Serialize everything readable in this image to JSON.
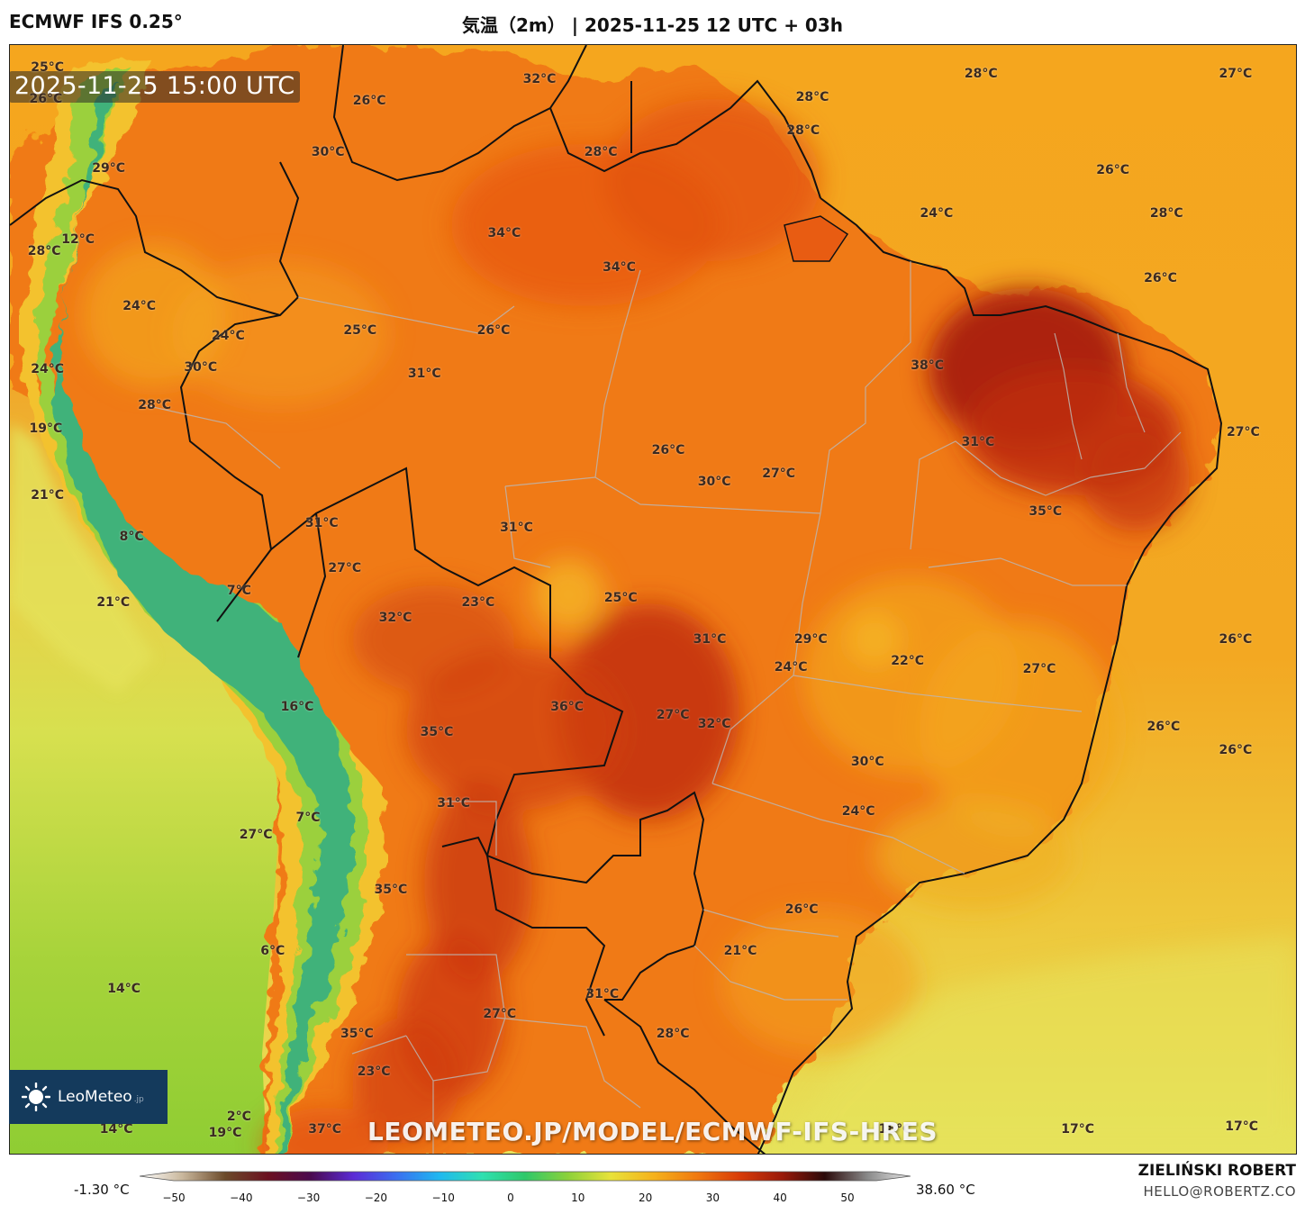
{
  "header": {
    "model": "ECMWF IFS 0.25°",
    "title": "気温（2m） | 2025-11-25 12 UTC + 03h"
  },
  "map": {
    "timestamp": "2025-11-25 15:00 UTC",
    "labels": [
      {
        "text": "25°C",
        "lon": -81.5,
        "lat": 13.6
      },
      {
        "text": "26°C",
        "lon": -81.6,
        "lat": 11.7
      },
      {
        "text": "29°C",
        "lon": -77.5,
        "lat": 7.5
      },
      {
        "text": "12°C",
        "lon": -79.5,
        "lat": 3.2
      },
      {
        "text": "28°C",
        "lon": -81.7,
        "lat": 2.5
      },
      {
        "text": "24°C",
        "lon": -75.5,
        "lat": -0.8
      },
      {
        "text": "24°C",
        "lon": -81.5,
        "lat": -4.6
      },
      {
        "text": "19°C",
        "lon": -81.6,
        "lat": -8.2
      },
      {
        "text": "21°C",
        "lon": -81.5,
        "lat": -12.2
      },
      {
        "text": "28°C",
        "lon": -74.5,
        "lat": -6.8
      },
      {
        "text": "8°C",
        "lon": -76.0,
        "lat": -14.7
      },
      {
        "text": "21°C",
        "lon": -77.2,
        "lat": -18.7
      },
      {
        "text": "7°C",
        "lon": -69.0,
        "lat": -18.0
      },
      {
        "text": "16°C",
        "lon": -65.2,
        "lat": -25.0
      },
      {
        "text": "27°C",
        "lon": -67.9,
        "lat": -32.7
      },
      {
        "text": "7°C",
        "lon": -64.5,
        "lat": -31.7
      },
      {
        "text": "6°C",
        "lon": -66.8,
        "lat": -39.7
      },
      {
        "text": "14°C",
        "lon": -76.5,
        "lat": -42.0
      },
      {
        "text": "14°C",
        "lon": -77.0,
        "lat": -50.5
      },
      {
        "text": "19°C",
        "lon": -69.9,
        "lat": -50.7
      },
      {
        "text": "2°C",
        "lon": -69.0,
        "lat": -49.7
      },
      {
        "text": "26°C",
        "lon": -60.5,
        "lat": 11.6
      },
      {
        "text": "30°C",
        "lon": -63.2,
        "lat": 8.5
      },
      {
        "text": "32°C",
        "lon": -49.4,
        "lat": 12.9
      },
      {
        "text": "28°C",
        "lon": -45.4,
        "lat": 8.5
      },
      {
        "text": "34°C",
        "lon": -51.7,
        "lat": 3.6
      },
      {
        "text": "34°C",
        "lon": -44.2,
        "lat": 1.5
      },
      {
        "text": "24°C",
        "lon": -69.7,
        "lat": -2.6
      },
      {
        "text": "30°C",
        "lon": -71.5,
        "lat": -4.5
      },
      {
        "text": "25°C",
        "lon": -61.1,
        "lat": -2.3
      },
      {
        "text": "26°C",
        "lon": -52.4,
        "lat": -2.3
      },
      {
        "text": "31°C",
        "lon": -56.9,
        "lat": -4.9
      },
      {
        "text": "26°C",
        "lon": -41.0,
        "lat": -9.5
      },
      {
        "text": "30°C",
        "lon": -38.0,
        "lat": -11.4
      },
      {
        "text": "27°C",
        "lon": -33.8,
        "lat": -10.9
      },
      {
        "text": "38°C",
        "lon": -24.1,
        "lat": -4.4
      },
      {
        "text": "31°C",
        "lon": -20.8,
        "lat": -9.0
      },
      {
        "text": "35°C",
        "lon": -16.4,
        "lat": -13.2
      },
      {
        "text": "28°C",
        "lon": -20.6,
        "lat": 13.2
      },
      {
        "text": "28°C",
        "lon": -31.6,
        "lat": 11.8
      },
      {
        "text": "28°C",
        "lon": -32.2,
        "lat": 9.8
      },
      {
        "text": "27°C",
        "lon": -4.0,
        "lat": 13.2
      },
      {
        "text": "26°C",
        "lon": -12.0,
        "lat": 7.4
      },
      {
        "text": "24°C",
        "lon": -23.5,
        "lat": 4.8
      },
      {
        "text": "28°C",
        "lon": -8.5,
        "lat": 4.8
      },
      {
        "text": "26°C",
        "lon": -8.9,
        "lat": 0.9
      },
      {
        "text": "27°C",
        "lon": -3.5,
        "lat": -8.4
      },
      {
        "text": "31°C",
        "lon": -63.6,
        "lat": -13.9
      },
      {
        "text": "27°C",
        "lon": -62.1,
        "lat": -16.6
      },
      {
        "text": "31°C",
        "lon": -50.9,
        "lat": -14.2
      },
      {
        "text": "32°C",
        "lon": -58.8,
        "lat": -19.6
      },
      {
        "text": "23°C",
        "lon": -53.4,
        "lat": -18.7
      },
      {
        "text": "25°C",
        "lon": -44.1,
        "lat": -18.4
      },
      {
        "text": "31°C",
        "lon": -38.3,
        "lat": -20.9
      },
      {
        "text": "29°C",
        "lon": -31.7,
        "lat": -20.9
      },
      {
        "text": "24°C",
        "lon": -33.0,
        "lat": -22.6
      },
      {
        "text": "22°C",
        "lon": -25.4,
        "lat": -22.2
      },
      {
        "text": "27°C",
        "lon": -16.8,
        "lat": -22.7
      },
      {
        "text": "26°C",
        "lon": -4.0,
        "lat": -20.9
      },
      {
        "text": "36°C",
        "lon": -47.6,
        "lat": -25.0
      },
      {
        "text": "35°C",
        "lon": -56.1,
        "lat": -26.5
      },
      {
        "text": "27°C",
        "lon": -40.7,
        "lat": -25.5
      },
      {
        "text": "32°C",
        "lon": -38.0,
        "lat": -26.0
      },
      {
        "text": "26°C",
        "lon": -8.7,
        "lat": -26.2
      },
      {
        "text": "26°C",
        "lon": -4.0,
        "lat": -27.6
      },
      {
        "text": "30°C",
        "lon": -28.0,
        "lat": -28.3
      },
      {
        "text": "24°C",
        "lon": -28.6,
        "lat": -31.3
      },
      {
        "text": "31°C",
        "lon": -55.0,
        "lat": -30.8
      },
      {
        "text": "35°C",
        "lon": -59.1,
        "lat": -36.0
      },
      {
        "text": "26°C",
        "lon": -32.3,
        "lat": -37.2
      },
      {
        "text": "21°C",
        "lon": -36.3,
        "lat": -39.7
      },
      {
        "text": "31°C",
        "lon": -45.3,
        "lat": -42.3
      },
      {
        "text": "27°C",
        "lon": -52.0,
        "lat": -43.5
      },
      {
        "text": "28°C",
        "lon": -40.7,
        "lat": -44.7
      },
      {
        "text": "35°C",
        "lon": -61.3,
        "lat": -44.7
      },
      {
        "text": "23°C",
        "lon": -60.2,
        "lat": -47.0
      },
      {
        "text": "37°C",
        "lon": -63.4,
        "lat": -50.5
      },
      {
        "text": "18°C",
        "lon": -26.2,
        "lat": -50.5
      },
      {
        "text": "17°C",
        "lon": -14.3,
        "lat": -50.5
      },
      {
        "text": "17°C",
        "lon": -3.6,
        "lat": -50.3
      }
    ]
  },
  "logo": {
    "text": "LeoMeteo",
    "suffix": ".jp"
  },
  "watermark": "LEOMETEO.JP/MODEL/ECMWF-IFS-HRES",
  "scale": {
    "min": "-1.30 °C",
    "max": "38.60 °C",
    "ticks": [
      "−50",
      "−40",
      "−30",
      "−20",
      "−10",
      "0",
      "10",
      "20",
      "30",
      "40",
      "50"
    ],
    "stops": [
      "#ffffff",
      "#c9b79c",
      "#6b4a2a",
      "#6b1020",
      "#4a0a4f",
      "#5b2bd6",
      "#3a6ff0",
      "#1fb8f0",
      "#2fe0b0",
      "#2ec86a",
      "#8cd13a",
      "#e8e23a",
      "#f5b21c",
      "#f07a10",
      "#d83c08",
      "#9a1a0a",
      "#2a0a0a",
      "#8a8a8a",
      "#e8e8e8"
    ]
  },
  "author": {
    "name": "ZIELIŃSKI ROBERT",
    "email": "HELLO@ROBERTZ.CO"
  },
  "colors": {
    "ocean_warm": "#f39a1e",
    "land_hot": "#ea5a12",
    "land_very_hot": "#a7200f",
    "ocean_cool": "#e9e36a",
    "andes_cold": "#3fb27a",
    "pacific": "#98cf3a"
  }
}
